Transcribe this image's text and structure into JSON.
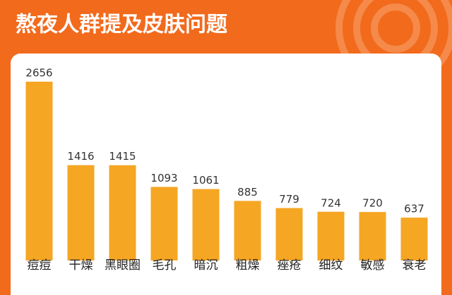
{
  "chart_data": {
    "type": "bar",
    "title": "熬夜人群提及皮肤问题",
    "categories": [
      "痘痘",
      "干燥",
      "黑眼圈",
      "毛孔",
      "暗沉",
      "粗燥",
      "痤疮",
      "细纹",
      "敏感",
      "衰老"
    ],
    "values": [
      2656,
      1416,
      1415,
      1093,
      1061,
      885,
      779,
      724,
      720,
      637
    ],
    "color": "#f5a623"
  }
}
